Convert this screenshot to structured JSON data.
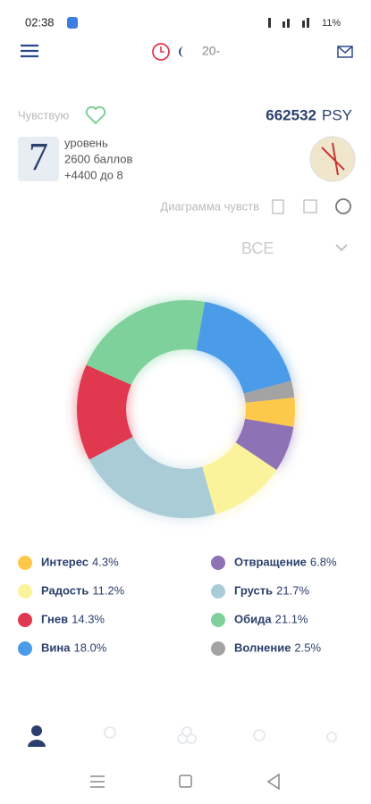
{
  "status": {
    "time": "02:38",
    "battery": "11%"
  },
  "header": {
    "counter": "20-"
  },
  "profile": {
    "feeling": "Чувствую",
    "score": "662532",
    "currency": "PSY",
    "level": "7",
    "level_label": "уровень",
    "points": "2600 баллов",
    "next": "+4400 до 8"
  },
  "toolbar": {
    "title": "Диаграмма чувств"
  },
  "filter": {
    "selected": "ВСЕ"
  },
  "chart_data": {
    "type": "donut",
    "categories": [
      "Вина",
      "Волнение",
      "Интерес",
      "Отвращение",
      "Радость",
      "Грусть",
      "Гнев",
      "Обида"
    ],
    "values": [
      18.0,
      2.5,
      4.3,
      6.8,
      11.2,
      21.7,
      14.3,
      21.1
    ],
    "value_labels": [
      "18.0%",
      "2.5%",
      "4.3%",
      "6.8%",
      "11.2%",
      "21.7%",
      "14.3%",
      "21.1%"
    ],
    "colors": [
      "#4a9be8",
      "#a3a3a3",
      "#fcc94a",
      "#8d72b5",
      "#fbf39b",
      "#a9ccd6",
      "#e0384e",
      "#7fd19c"
    ]
  }
}
